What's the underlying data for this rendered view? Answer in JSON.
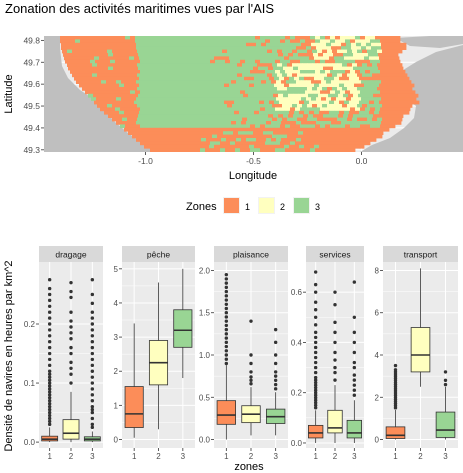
{
  "title": "Zonation des activités maritimes vues par l'AIS",
  "colors": {
    "zone1": "#fc8d59",
    "zone2": "#ffffbf",
    "zone3": "#99d594",
    "land": "#bfbfbf",
    "panel_bg": "#ebebeb",
    "grid": "#ffffff",
    "strip_bg": "#d9d9d9",
    "outlier": "#333333"
  },
  "chart_data": [
    {
      "type": "heatmap",
      "title": "Zonation des activités maritimes vues par l'AIS",
      "xlabel": "Longitude",
      "ylabel": "Latitude",
      "xlim": [
        -1.47,
        0.47
      ],
      "ylim": [
        49.29,
        49.82
      ],
      "x_ticks": [
        -1.0,
        -0.5,
        0.0
      ],
      "x_tick_labels": [
        "-1.0",
        "-0.5",
        "0.0"
      ],
      "y_ticks": [
        49.3,
        49.4,
        49.5,
        49.6,
        49.7,
        49.8
      ],
      "y_tick_labels": [
        "49.3",
        "49.4",
        "49.5",
        "49.6",
        "49.7",
        "49.8"
      ],
      "grid": true,
      "legend": {
        "title": "Zones",
        "position": "bottom",
        "entries": [
          "1",
          "2",
          "3"
        ]
      },
      "zones": [
        "1",
        "2",
        "3"
      ],
      "note_values": "cell zone assignment shown as a raster; zone 1 dominant in west and coastal band, zone 3 mid-bay, zone 2 patches near the eastern coast"
    },
    {
      "type": "boxplot",
      "xlabel": "zones",
      "ylabel": "Densité de navires en heures par km^2",
      "categories": [
        "1",
        "2",
        "3"
      ],
      "facets": [
        {
          "name": "dragage",
          "ylim": [
            -0.01,
            0.305
          ],
          "y_ticks": [
            0.0,
            0.1,
            0.2
          ],
          "y_tick_labels": [
            "0.0",
            "0.1",
            "0.2"
          ],
          "boxes": [
            {
              "zone": "1",
              "min": 0.0,
              "q1": 0.002,
              "median": 0.005,
              "q3": 0.01,
              "max": 0.025,
              "outliers": [
                0.03,
                0.035,
                0.04,
                0.045,
                0.05,
                0.055,
                0.06,
                0.065,
                0.07,
                0.075,
                0.08,
                0.085,
                0.09,
                0.095,
                0.1,
                0.105,
                0.11,
                0.115,
                0.12,
                0.13,
                0.14,
                0.15,
                0.16,
                0.17,
                0.18,
                0.19,
                0.2,
                0.21,
                0.22,
                0.23,
                0.24,
                0.25,
                0.26,
                0.275
              ]
            },
            {
              "zone": "2",
              "min": 0.0,
              "q1": 0.005,
              "median": 0.015,
              "q3": 0.038,
              "max": 0.085,
              "outliers": [
                0.1,
                0.115,
                0.125,
                0.135,
                0.15,
                0.16,
                0.175,
                0.185,
                0.195,
                0.205,
                0.22,
                0.245,
                0.255,
                0.27
              ]
            },
            {
              "zone": "3",
              "min": 0.0,
              "q1": 0.002,
              "median": 0.005,
              "q3": 0.009,
              "max": 0.018,
              "outliers": [
                0.025,
                0.03,
                0.04,
                0.05,
                0.055,
                0.06,
                0.07,
                0.08,
                0.09,
                0.1,
                0.11,
                0.12,
                0.13,
                0.14,
                0.15,
                0.16,
                0.17,
                0.18,
                0.19,
                0.2,
                0.21,
                0.22,
                0.235,
                0.25,
                0.275
              ]
            }
          ]
        },
        {
          "name": "pêche",
          "ylim": [
            -0.25,
            5.2
          ],
          "y_ticks": [
            0,
            1,
            2,
            3,
            4,
            5
          ],
          "y_tick_labels": [
            "0",
            "1",
            "2",
            "3",
            "4",
            "5"
          ],
          "boxes": [
            {
              "zone": "1",
              "min": 0.05,
              "q1": 0.35,
              "median": 0.75,
              "q3": 1.55,
              "max": 3.4,
              "outliers": []
            },
            {
              "zone": "2",
              "min": 0.3,
              "q1": 1.6,
              "median": 2.25,
              "q3": 2.9,
              "max": 4.6,
              "outliers": []
            },
            {
              "zone": "3",
              "min": 1.8,
              "q1": 2.7,
              "median": 3.2,
              "q3": 3.8,
              "max": 5.0,
              "outliers": []
            }
          ]
        },
        {
          "name": "plaisance",
          "ylim": [
            -0.1,
            2.1
          ],
          "y_ticks": [
            0.0,
            0.5,
            1.0,
            1.5,
            2.0
          ],
          "y_tick_labels": [
            "0.0",
            "0.5",
            "1.0",
            "1.5",
            "2.0"
          ],
          "boxes": [
            {
              "zone": "1",
              "min": 0.0,
              "q1": 0.18,
              "median": 0.29,
              "q3": 0.46,
              "max": 0.88,
              "outliers": [
                0.9,
                0.95,
                1.0,
                1.05,
                1.1,
                1.15,
                1.2,
                1.25,
                1.3,
                1.35,
                1.4,
                1.45,
                1.5,
                1.55,
                1.6,
                1.65,
                1.7,
                1.75,
                1.8,
                1.85,
                1.9,
                1.95
              ]
            },
            {
              "zone": "2",
              "min": 0.05,
              "q1": 0.2,
              "median": 0.3,
              "q3": 0.4,
              "max": 0.62,
              "outliers": [
                0.66,
                0.7,
                0.74,
                0.8,
                0.9,
                1.0,
                1.4
              ]
            },
            {
              "zone": "3",
              "min": 0.05,
              "q1": 0.19,
              "median": 0.27,
              "q3": 0.36,
              "max": 0.56,
              "outliers": [
                0.6,
                0.65,
                0.7,
                0.75,
                0.8,
                0.9,
                1.0,
                1.15,
                1.3
              ]
            }
          ]
        },
        {
          "name": "services",
          "ylim": [
            -0.02,
            0.72
          ],
          "y_ticks": [
            0.0,
            0.2,
            0.4,
            0.6
          ],
          "y_tick_labels": [
            "0.0",
            "0.2",
            "0.4",
            "0.6"
          ],
          "boxes": [
            {
              "zone": "1",
              "min": 0.0,
              "q1": 0.02,
              "median": 0.04,
              "q3": 0.07,
              "max": 0.13,
              "outliers": [
                0.14,
                0.15,
                0.16,
                0.17,
                0.18,
                0.19,
                0.2,
                0.21,
                0.22,
                0.23,
                0.24,
                0.25,
                0.26,
                0.28,
                0.3,
                0.32,
                0.34,
                0.36,
                0.38,
                0.4,
                0.42,
                0.44,
                0.47,
                0.5,
                0.53,
                0.56,
                0.6,
                0.63,
                0.68
              ]
            },
            {
              "zone": "2",
              "min": 0.0,
              "q1": 0.04,
              "median": 0.06,
              "q3": 0.13,
              "max": 0.23,
              "outliers": [
                0.25,
                0.28,
                0.3,
                0.33,
                0.36,
                0.4,
                0.44,
                0.48,
                0.55,
                0.6
              ]
            },
            {
              "zone": "3",
              "min": 0.0,
              "q1": 0.02,
              "median": 0.04,
              "q3": 0.09,
              "max": 0.17,
              "outliers": [
                0.19,
                0.21,
                0.23,
                0.25,
                0.27,
                0.3,
                0.32,
                0.36,
                0.4,
                0.44,
                0.5,
                0.64
              ]
            }
          ]
        },
        {
          "name": "transport",
          "ylim": [
            -0.4,
            8.4
          ],
          "y_ticks": [
            0,
            2,
            4,
            6,
            8
          ],
          "y_tick_labels": [
            "0",
            "2",
            "4",
            "6",
            "8"
          ],
          "boxes": [
            {
              "zone": "1",
              "min": 0.0,
              "q1": 0.05,
              "median": 0.2,
              "q3": 0.6,
              "max": 1.4,
              "outliers": [
                1.5,
                1.6,
                1.7,
                1.8,
                1.9,
                2.0,
                2.1,
                2.2,
                2.3,
                2.4,
                2.5,
                2.6,
                2.7,
                2.8,
                2.9,
                3.0,
                3.1,
                3.2,
                3.3,
                3.5
              ]
            },
            {
              "zone": "2",
              "min": 2.5,
              "q1": 3.2,
              "median": 4.0,
              "q3": 5.3,
              "max": 8.1,
              "outliers": []
            },
            {
              "zone": "3",
              "min": 0.0,
              "q1": 0.1,
              "median": 0.45,
              "q3": 1.3,
              "max": 2.5,
              "outliers": [
                2.6,
                2.8,
                3.2
              ]
            }
          ]
        }
      ]
    }
  ]
}
